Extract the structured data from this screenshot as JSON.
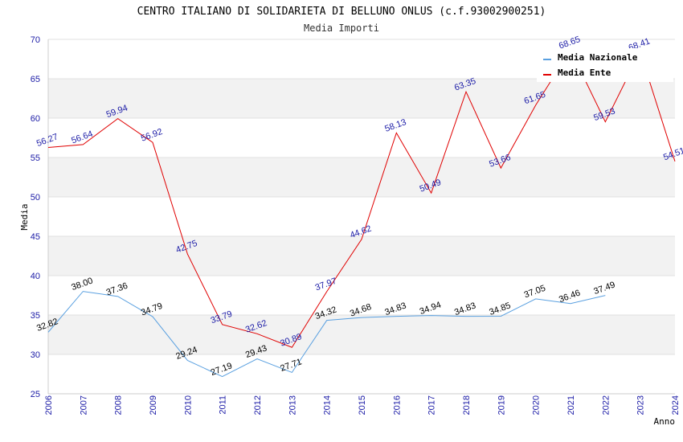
{
  "chart_data": {
    "type": "line",
    "title": "CENTRO ITALIANO DI SOLIDARIETA DI BELLUNO ONLUS (c.f.93002900251)",
    "subtitle": "Media Importi",
    "xlabel": "Anno",
    "ylabel": "Media",
    "ylim": [
      25,
      70
    ],
    "yticks": [
      25,
      30,
      35,
      40,
      45,
      50,
      55,
      60,
      65,
      70
    ],
    "x": [
      2006,
      2007,
      2008,
      2009,
      2010,
      2011,
      2012,
      2013,
      2014,
      2015,
      2016,
      2017,
      2018,
      2019,
      2020,
      2021,
      2022,
      2023,
      2024
    ],
    "grid": true,
    "legend_position": "top-right",
    "series": [
      {
        "name": "Media Nazionale",
        "color": "#5aa0e0",
        "label_color": "#000000",
        "values": [
          32.82,
          38.0,
          37.36,
          34.79,
          29.24,
          27.19,
          29.43,
          27.71,
          34.32,
          34.68,
          34.83,
          34.94,
          34.83,
          34.85,
          37.05,
          36.46,
          37.49,
          null,
          null
        ],
        "labels": [
          "32.82",
          "38.00",
          "37.36",
          "34.79",
          "29.24",
          "27.19",
          "29.43",
          "27.71",
          "34.32",
          "34.68",
          "34.83",
          "34.94",
          "34.83",
          "34.85",
          "37.05",
          "36.46",
          "37.49",
          null,
          null
        ]
      },
      {
        "name": "Media Ente",
        "color": "#e00000",
        "label_color": "#1a1aa6",
        "values": [
          56.27,
          56.64,
          59.94,
          56.92,
          42.75,
          33.79,
          32.62,
          30.89,
          37.97,
          44.62,
          58.13,
          50.49,
          63.35,
          53.66,
          61.65,
          68.65,
          59.53,
          68.41,
          54.51
        ],
        "labels": [
          "56.27",
          "56.64",
          "59.94",
          "56.92",
          "42.75",
          "33.79",
          "32.62",
          "30.89",
          "37.97",
          "44.62",
          "58.13",
          "50.49",
          "63.35",
          "53.66",
          "61.65",
          "68.65",
          "59.53",
          "68.41",
          "54.51"
        ]
      }
    ]
  }
}
